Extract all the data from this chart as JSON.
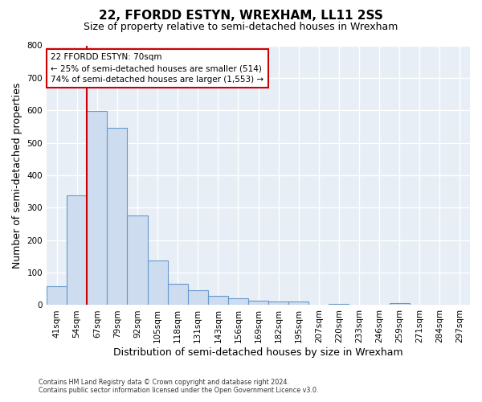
{
  "title": "22, FFORDD ESTYN, WREXHAM, LL11 2SS",
  "subtitle": "Size of property relative to semi-detached houses in Wrexham",
  "xlabel": "Distribution of semi-detached houses by size in Wrexham",
  "ylabel": "Number of semi-detached properties",
  "bar_labels": [
    "41sqm",
    "54sqm",
    "67sqm",
    "79sqm",
    "92sqm",
    "105sqm",
    "118sqm",
    "131sqm",
    "143sqm",
    "156sqm",
    "169sqm",
    "182sqm",
    "195sqm",
    "207sqm",
    "220sqm",
    "233sqm",
    "246sqm",
    "259sqm",
    "271sqm",
    "284sqm",
    "297sqm"
  ],
  "bar_values": [
    57,
    337,
    597,
    545,
    275,
    138,
    65,
    46,
    28,
    20,
    14,
    10,
    10,
    0,
    4,
    0,
    0,
    5,
    0,
    0,
    2
  ],
  "bar_color": "#cddcee",
  "bar_edge_color": "#6699cc",
  "annotation_title": "22 FFORDD ESTYN: 70sqm",
  "annotation_line1": "← 25% of semi-detached houses are smaller (514)",
  "annotation_line2": "74% of semi-detached houses are larger (1,553) →",
  "annotation_box_color": "#ffffff",
  "annotation_box_edge": "#cc0000",
  "vline_color": "#cc0000",
  "ylim": [
    0,
    800
  ],
  "yticks": [
    0,
    100,
    200,
    300,
    400,
    500,
    600,
    700,
    800
  ],
  "footer1": "Contains HM Land Registry data © Crown copyright and database right 2024.",
  "footer2": "Contains public sector information licensed under the Open Government Licence v3.0.",
  "bg_color": "#ffffff",
  "plot_bg_color": "#e8eef5",
  "grid_color": "#ffffff",
  "title_fontsize": 11,
  "subtitle_fontsize": 9,
  "axis_label_fontsize": 9,
  "tick_fontsize": 7.5
}
